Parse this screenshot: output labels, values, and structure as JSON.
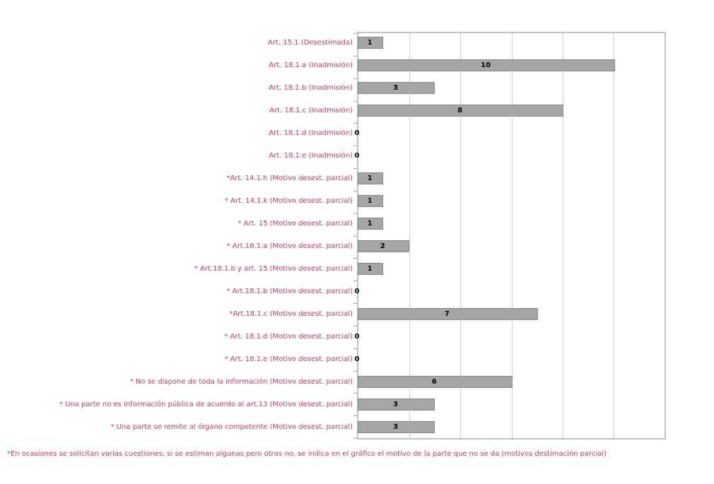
{
  "chart_data": {
    "type": "bar",
    "orientation": "horizontal",
    "title": "",
    "xlabel": "",
    "ylabel": "",
    "xlim": [
      0,
      12
    ],
    "grid_interval": 2,
    "grid": "vertical gridlines only",
    "legend": "none",
    "bar_color": "#a5a5a5",
    "bar_border_color": "#8a8a8a",
    "category_label_color": "#c3415a",
    "value_label_color": "#000000",
    "categories": [
      "Art. 15.1 (Desestimada)",
      "Art. 18.1.a (Inadmisión)",
      "Art. 18.1.b (Inadmisión)",
      "Art. 18.1.c (Inadmisión)",
      "Art. 18.1.d (Inadmisión)",
      "Art. 18.1.e (Inadmisión)",
      "*Art. 14.1.h (Motivo desest. parcial)",
      "* Art. 14.1.k  (Motivo desest. parcial)",
      "* Art. 15 (Motivo desest. parcial)",
      "* Art.18.1.a (Motivo desest. parcial)",
      "* Art.18.1.b y art. 15 (Motivo desest. parcial)",
      "* Art.18.1.b (Motivo desest. parcial)",
      "*Art.18.1.c (Motivo desest. parcial)",
      "* Art. 18.1.d (Motivo desest. parcial)",
      "* Art. 18.1.e (Motivo desest. parcial)",
      "* No se dispone de toda la información (Motivo desest. parcial)",
      "* Una parte no es información pública de acuerdo al art.13  (Motivo desest. parcial)",
      "* Una parte se remite al órgano competente (Motivo desest. parcial)"
    ],
    "values": [
      1,
      10,
      3,
      8,
      0,
      0,
      1,
      1,
      1,
      2,
      1,
      0,
      7,
      0,
      0,
      6,
      3,
      3
    ]
  },
  "footnote": "*En ocasiones se solicitan varias cuestiones, si se estiman algunas pero otras no, se indica en el gráfico el motivo de la parte que no se da (motivos destimación parcial)"
}
